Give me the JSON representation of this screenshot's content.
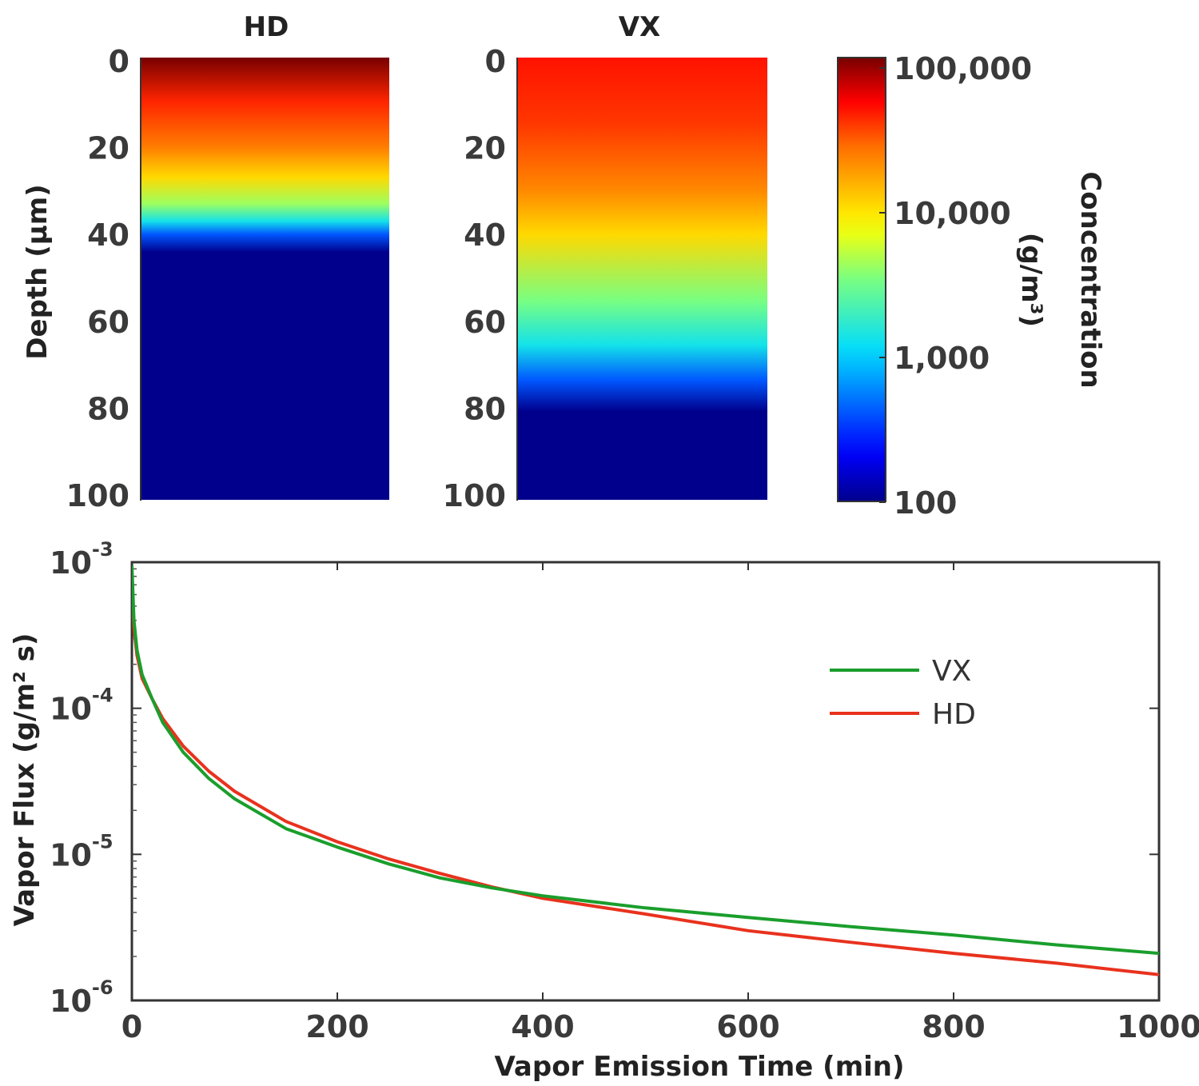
{
  "chart_data": [
    {
      "type": "heatmap",
      "title": "HD",
      "ylabel": "Depth (µm)",
      "ylim": [
        0,
        100
      ],
      "yticks": [
        "0",
        "20",
        "40",
        "60",
        "80",
        "100"
      ],
      "profile": [
        {
          "depth": 0,
          "log10_concentration": 5.0
        },
        {
          "depth": 10,
          "log10_concentration": 4.6
        },
        {
          "depth": 20,
          "log10_concentration": 4.35
        },
        {
          "depth": 27,
          "log10_concentration": 4.0
        },
        {
          "depth": 33,
          "log10_concentration": 3.6
        },
        {
          "depth": 37,
          "log10_concentration": 3.1
        },
        {
          "depth": 40,
          "log10_concentration": 2.6
        },
        {
          "depth": 44,
          "log10_concentration": 2.0
        },
        {
          "depth": 100,
          "log10_concentration": 2.0
        }
      ]
    },
    {
      "type": "heatmap",
      "title": "VX",
      "ylim": [
        0,
        100
      ],
      "yticks": [
        "0",
        "20",
        "40",
        "60",
        "80",
        "100"
      ],
      "profile": [
        {
          "depth": 0,
          "log10_concentration": 4.65
        },
        {
          "depth": 15,
          "log10_concentration": 4.55
        },
        {
          "depth": 30,
          "log10_concentration": 4.3
        },
        {
          "depth": 40,
          "log10_concentration": 4.0
        },
        {
          "depth": 55,
          "log10_concentration": 3.5
        },
        {
          "depth": 65,
          "log10_concentration": 3.1
        },
        {
          "depth": 73,
          "log10_concentration": 2.6
        },
        {
          "depth": 80,
          "log10_concentration": 2.0
        },
        {
          "depth": 100,
          "log10_concentration": 2.0
        }
      ]
    },
    {
      "type": "colorbar",
      "label": "Concentration",
      "unit_label": "(g/m³)",
      "scale": "log",
      "range": [
        100,
        100000
      ],
      "tick_labels": [
        "100,000",
        "10,000",
        "1,000",
        "100"
      ]
    },
    {
      "type": "line",
      "xlabel": "Vapor Emission Time (min)",
      "ylabel": "Vapor Flux (g/m² s)",
      "xlim": [
        0,
        1000
      ],
      "ylim": [
        1e-06,
        0.001
      ],
      "yscale": "log",
      "x_tick_labels": [
        "0",
        "200",
        "400",
        "600",
        "800",
        "1000"
      ],
      "y_tick_labels": [
        {
          "base": "10",
          "exp": "-3"
        },
        {
          "base": "10",
          "exp": "-4"
        },
        {
          "base": "10",
          "exp": "-5"
        },
        {
          "base": "10",
          "exp": "-6"
        }
      ],
      "legend_position": "top-right",
      "series": [
        {
          "name": "VX",
          "color": "#1a9e2c",
          "x": [
            0,
            2,
            5,
            10,
            20,
            30,
            50,
            75,
            100,
            150,
            200,
            250,
            300,
            350,
            400,
            500,
            600,
            700,
            800,
            900,
            1000
          ],
          "y": [
            0.00095,
            0.0004,
            0.00025,
            0.00017,
            0.000115,
            8e-05,
            5e-05,
            3.3e-05,
            2.4e-05,
            1.5e-05,
            1.12e-05,
            8.6e-06,
            6.9e-06,
            5.9e-06,
            5.2e-06,
            4.3e-06,
            3.7e-06,
            3.2e-06,
            2.8e-06,
            2.4e-06,
            2.1e-06
          ]
        },
        {
          "name": "HD",
          "color": "#e8321e",
          "x": [
            0,
            2,
            5,
            10,
            20,
            30,
            50,
            75,
            100,
            150,
            200,
            250,
            300,
            350,
            400,
            500,
            600,
            700,
            800,
            900,
            1000
          ],
          "y": [
            0.0007,
            0.00035,
            0.00023,
            0.00016,
            0.000115,
            8.5e-05,
            5.5e-05,
            3.7e-05,
            2.7e-05,
            1.68e-05,
            1.22e-05,
            9.3e-06,
            7.4e-06,
            6e-06,
            5e-06,
            3.9e-06,
            3e-06,
            2.5e-06,
            2.1e-06,
            1.8e-06,
            1.5e-06
          ]
        }
      ]
    }
  ]
}
